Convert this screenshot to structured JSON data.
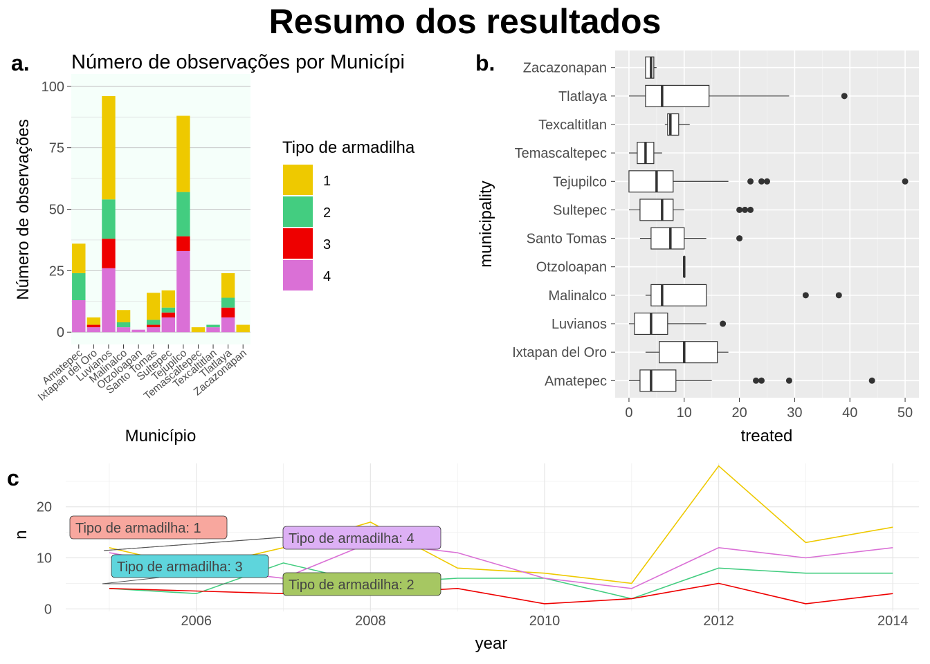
{
  "title": "Resumo dos resultados",
  "colors": {
    "trap_1": "#EEC900",
    "trap_2": "#43CD80",
    "trap_3": "#EE0000",
    "trap_4": "#DA70D6",
    "panel_a_bg": "#F5FFFA",
    "panel_b_bg": "#EBEBEB"
  },
  "chart_data": [
    {
      "panel": "a.",
      "type": "bar",
      "stacked": true,
      "title": "Número de observações por Municípi",
      "xlabel": "Município",
      "ylabel": "Número de observações",
      "ylim": [
        0,
        100
      ],
      "yticks": [
        0,
        25,
        50,
        75,
        100
      ],
      "categories": [
        "Amatepec",
        "Ixtapan del Oro",
        "Luvianos",
        "Malinalco",
        "Otzoloapan",
        "Santo Tomas",
        "Sultepec",
        "Tejupilco",
        "Temascaltepec",
        "Texcaltitlan",
        "Tlatlaya",
        "Zacazonapan"
      ],
      "legend_title": "Tipo de armadilha",
      "legend_position": "right",
      "series": [
        {
          "name": "4",
          "color": "#DA70D6",
          "values": [
            13,
            2,
            26,
            2,
            1,
            2,
            6,
            33,
            0,
            2,
            6,
            0
          ]
        },
        {
          "name": "3",
          "color": "#EE0000",
          "values": [
            0,
            1,
            12,
            0,
            0,
            1,
            2,
            6,
            0,
            0,
            4,
            0
          ]
        },
        {
          "name": "2",
          "color": "#43CD80",
          "values": [
            11,
            0,
            16,
            2,
            0,
            2,
            2,
            18,
            0,
            1,
            4,
            0
          ]
        },
        {
          "name": "1",
          "color": "#EEC900",
          "values": [
            12,
            3,
            42,
            5,
            0,
            11,
            7,
            31,
            2,
            0,
            10,
            3
          ]
        }
      ]
    },
    {
      "panel": "b.",
      "type": "boxplot",
      "xlabel": "treated",
      "ylabel": "municipality",
      "xlim": [
        -2.5,
        52.5
      ],
      "xticks": [
        0,
        10,
        20,
        30,
        40,
        50
      ],
      "categories": [
        "Amatepec",
        "Ixtapan del Oro",
        "Luvianos",
        "Malinalco",
        "Otzoloapan",
        "Santo Tomas",
        "Sultepec",
        "Tejupilco",
        "Temascaltepec",
        "Texcaltitlan",
        "Tlatlaya",
        "Zacazonapan"
      ],
      "boxes": [
        {
          "name": "Amatepec",
          "min": 0,
          "q1": 2,
          "median": 4,
          "q3": 8.5,
          "max": 15,
          "outliers": [
            23,
            24,
            29,
            44
          ]
        },
        {
          "name": "Ixtapan del Oro",
          "min": 3,
          "q1": 5.5,
          "median": 10,
          "q3": 16,
          "max": 18,
          "outliers": []
        },
        {
          "name": "Luvianos",
          "min": 0,
          "q1": 1,
          "median": 4,
          "q3": 7,
          "max": 14,
          "outliers": [
            17
          ]
        },
        {
          "name": "Malinalco",
          "min": 3,
          "q1": 4,
          "median": 6,
          "q3": 14,
          "max": 14,
          "outliers": [
            32,
            38
          ]
        },
        {
          "name": "Otzoloapan",
          "min": 10,
          "q1": 10,
          "median": 10,
          "q3": 10,
          "max": 10,
          "outliers": []
        },
        {
          "name": "Santo Tomas",
          "min": 2,
          "q1": 4,
          "median": 7.5,
          "q3": 10,
          "max": 14,
          "outliers": [
            20
          ]
        },
        {
          "name": "Sultepec",
          "min": 0,
          "q1": 2,
          "median": 6,
          "q3": 8,
          "max": 10,
          "outliers": [
            20,
            21,
            22
          ]
        },
        {
          "name": "Tejupilco",
          "min": 0,
          "q1": 0,
          "median": 5,
          "q3": 8,
          "max": 18,
          "outliers": [
            22,
            24,
            25,
            50
          ]
        },
        {
          "name": "Temascaltepec",
          "min": 0,
          "q1": 1.5,
          "median": 3,
          "q3": 4.5,
          "max": 6,
          "outliers": []
        },
        {
          "name": "Texcaltitlan",
          "min": 6.5,
          "q1": 7,
          "median": 7.5,
          "q3": 9,
          "max": 11,
          "outliers": []
        },
        {
          "name": "Tlatlaya",
          "min": 0,
          "q1": 3,
          "median": 6,
          "q3": 14.5,
          "max": 29,
          "outliers": [
            39
          ]
        },
        {
          "name": "Zacazonapan",
          "min": 3,
          "q1": 3,
          "median": 4,
          "q3": 4.5,
          "max": 5,
          "outliers": []
        }
      ]
    },
    {
      "panel": "c",
      "type": "line",
      "xlabel": "year",
      "ylabel": "n",
      "xlim": [
        2004.5,
        2014.3
      ],
      "ylim": [
        -0.5,
        28.5
      ],
      "xticks": [
        2006,
        2008,
        2010,
        2012,
        2014
      ],
      "yticks": [
        0,
        10,
        20
      ],
      "x": [
        2005,
        2006,
        2007,
        2008,
        2009,
        2010,
        2011,
        2012,
        2013,
        2014
      ],
      "series": [
        {
          "name": "1",
          "color": "#EEC900",
          "values": [
            12,
            8,
            12,
            17,
            8,
            7,
            5,
            28,
            13,
            16
          ]
        },
        {
          "name": "2",
          "color": "#43CD80",
          "values": [
            4,
            3,
            9,
            5,
            6,
            6,
            2,
            8,
            7,
            7
          ]
        },
        {
          "name": "3",
          "color": "#EE0000",
          "values": [
            4,
            3.5,
            3,
            3,
            4,
            1,
            2,
            5,
            1,
            3
          ]
        },
        {
          "name": "4",
          "color": "#DA70D6",
          "values": [
            11,
            8,
            6,
            13,
            11,
            6,
            4,
            12,
            10,
            12
          ]
        }
      ],
      "labels": [
        {
          "text": "Tipo de armadilha:  1",
          "fill": "#F8A79E"
        },
        {
          "text": "Tipo de armadilha:  4",
          "fill": "#DDB0F5"
        },
        {
          "text": "Tipo de armadilha:  3",
          "fill": "#5ED5DC"
        },
        {
          "text": "Tipo de armadilha:  2",
          "fill": "#A6C762"
        }
      ]
    }
  ]
}
